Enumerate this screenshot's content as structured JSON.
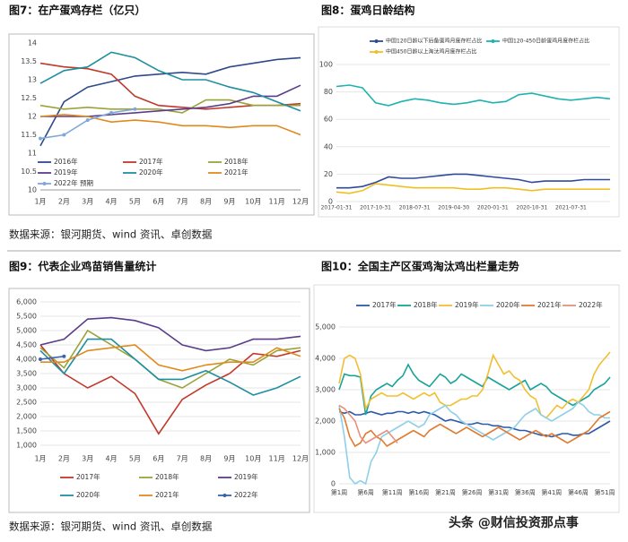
{
  "chart_data": [
    {
      "type": "line",
      "title": "图7：在产蛋鸡存栏（亿只）",
      "categories": [
        "1月",
        "2月",
        "3月",
        "4月",
        "5月",
        "6月",
        "7月",
        "8月",
        "9月",
        "10月",
        "11月",
        "12月"
      ],
      "ylim": [
        10,
        14
      ],
      "yticks": [
        10,
        10.5,
        11,
        11.5,
        12,
        12.5,
        13,
        13.5,
        14
      ],
      "legend": "bottom",
      "series": [
        {
          "name": "2016年",
          "color": "#2e4a8a",
          "values": [
            11.2,
            12.4,
            12.8,
            12.95,
            13.1,
            13.15,
            13.2,
            13.15,
            13.35,
            13.45,
            13.55,
            13.6
          ]
        },
        {
          "name": "2017年",
          "color": "#c0392b",
          "values": [
            13.45,
            13.35,
            13.3,
            13.15,
            12.55,
            12.3,
            12.25,
            12.2,
            12.25,
            12.3,
            12.3,
            12.35
          ]
        },
        {
          "name": "2018年",
          "color": "#9aa33a",
          "values": [
            12.3,
            12.2,
            12.25,
            12.2,
            12.2,
            12.2,
            12.1,
            12.45,
            12.45,
            12.3,
            12.3,
            12.3
          ]
        },
        {
          "name": "2019年",
          "color": "#5b3d8a",
          "values": [
            12.0,
            12.0,
            12.0,
            12.05,
            12.1,
            12.15,
            12.2,
            12.25,
            12.35,
            12.55,
            12.55,
            12.85
          ]
        },
        {
          "name": "2020年",
          "color": "#1f8fa0",
          "values": [
            12.9,
            13.25,
            13.35,
            13.75,
            13.6,
            13.25,
            13.0,
            13.0,
            12.8,
            12.65,
            12.4,
            12.15
          ]
        },
        {
          "name": "2021年",
          "color": "#e08a1e",
          "values": [
            12.0,
            12.05,
            12.0,
            11.85,
            11.9,
            11.85,
            11.75,
            11.75,
            11.7,
            11.75,
            11.75,
            11.5
          ]
        },
        {
          "name": "2022年 预期",
          "color": "#7fa8d8",
          "markers": true,
          "values": [
            11.4,
            11.5,
            11.9,
            12.1,
            12.2,
            null,
            null,
            null,
            null,
            null,
            null,
            null
          ]
        }
      ]
    },
    {
      "type": "line",
      "title": "图8：蛋鸡日龄结构",
      "categories": [
        "2017-01-31",
        null,
        null,
        "2017-10-31",
        null,
        null,
        "2018-07-31",
        null,
        null,
        "2019-04-30",
        null,
        null,
        "2020-01-31",
        null,
        null,
        "2020-10-31",
        null,
        null,
        "2021-07-31",
        null,
        null,
        null
      ],
      "ylim": [
        0,
        100
      ],
      "yticks": [
        0,
        20,
        40,
        60,
        80,
        100
      ],
      "legend": "top",
      "series": [
        {
          "name": "中国120日龄以下后备蛋鸡月度存栏占比",
          "color": "#2e4a9a",
          "markers": true,
          "values": [
            10,
            10,
            11,
            14,
            18,
            17,
            17,
            18,
            19,
            20,
            20,
            19,
            18,
            17,
            16,
            14,
            15,
            15,
            15,
            16,
            16,
            16
          ]
        },
        {
          "name": "中国120-450日龄蛋鸡月度存栏占比",
          "color": "#1fb3b0",
          "markers": true,
          "values": [
            84,
            85,
            83,
            72,
            70,
            73,
            75,
            74,
            72,
            71,
            72,
            74,
            72,
            73,
            78,
            79,
            77,
            75,
            74,
            75,
            76,
            75
          ]
        },
        {
          "name": "中国450日龄以上淘汰鸡月度存栏占比",
          "color": "#f0c020",
          "markers": true,
          "values": [
            7,
            6,
            8,
            13,
            12,
            11,
            10,
            10,
            10,
            10,
            9,
            9,
            10,
            10,
            9,
            8,
            9,
            9,
            9,
            9,
            9,
            9
          ]
        }
      ]
    },
    {
      "type": "line",
      "title": "图9：代表企业鸡苗销售量统计",
      "categories": [
        "1月",
        "2月",
        "3月",
        "4月",
        "5月",
        "6月",
        "7月",
        "8月",
        "9月",
        "10月",
        "11月",
        "12月"
      ],
      "ylim": [
        1000,
        6000
      ],
      "yticks": [
        {
          "value": 1000,
          "label": "1,000"
        },
        {
          "value": 1500,
          "label": "1,500"
        },
        {
          "value": 2000,
          "label": "2,000"
        },
        {
          "value": 2500,
          "label": "2,500"
        },
        {
          "value": 3000,
          "label": "3,000"
        },
        {
          "value": 3500,
          "label": "3,500"
        },
        {
          "value": 4000,
          "label": "4,000"
        },
        {
          "value": 4500,
          "label": "4,500"
        },
        {
          "value": 5000,
          "label": "5,000"
        },
        {
          "value": 5500,
          "label": "5,500"
        },
        {
          "value": 6000,
          "label": "6,000"
        }
      ],
      "legend": "bottom",
      "series": [
        {
          "name": "2017年",
          "color": "#c0392b",
          "values": [
            4500,
            3500,
            3000,
            3400,
            2800,
            1400,
            2600,
            3100,
            3500,
            4200,
            4100,
            4300
          ]
        },
        {
          "name": "2018年",
          "color": "#9aa33a",
          "values": [
            4400,
            3700,
            5000,
            4500,
            4000,
            3300,
            3000,
            3500,
            4000,
            3800,
            4300,
            4400
          ]
        },
        {
          "name": "2019年",
          "color": "#5b3d8a",
          "values": [
            4500,
            4700,
            5400,
            5450,
            5350,
            5100,
            4500,
            4300,
            4400,
            4700,
            4700,
            4800
          ]
        },
        {
          "name": "2020年",
          "color": "#1f8fa0",
          "values": [
            4300,
            3500,
            4700,
            4700,
            4000,
            3300,
            3300,
            3600,
            3200,
            2750,
            3000,
            3400
          ]
        },
        {
          "name": "2021年",
          "color": "#e08a1e",
          "values": [
            3900,
            3900,
            4300,
            4400,
            4500,
            3800,
            3600,
            3800,
            3900,
            3900,
            4400,
            4100
          ]
        },
        {
          "name": "2022年",
          "color": "#3a62b0",
          "markers": true,
          "values": [
            4000,
            4100,
            null,
            null,
            null,
            null,
            null,
            null,
            null,
            null,
            null,
            null
          ]
        }
      ]
    },
    {
      "type": "line",
      "title": "图10：全国主产区蛋鸡淘汰鸡出栏量走势",
      "categories": [
        "第1周",
        null,
        null,
        null,
        null,
        "第6周",
        null,
        null,
        null,
        null,
        "第11周",
        null,
        null,
        null,
        null,
        "第16周",
        null,
        null,
        null,
        null,
        "第21周",
        null,
        null,
        null,
        null,
        "第26周",
        null,
        null,
        null,
        null,
        "第31周",
        null,
        null,
        null,
        null,
        "第36周",
        null,
        null,
        null,
        null,
        "第41周",
        null,
        null,
        null,
        null,
        "第46周",
        null,
        null,
        null,
        null,
        "第51周",
        null
      ],
      "ylim": [
        0,
        5000
      ],
      "yticks": [
        0,
        {
          "value": 1000,
          "label": "1,000"
        },
        {
          "value": 2000,
          "label": "2,000"
        },
        {
          "value": 3000,
          "label": "3,000"
        },
        {
          "value": 4000,
          "label": "4,000"
        },
        {
          "value": 5000,
          "label": "5,000"
        }
      ],
      "legend": "top",
      "series": [
        {
          "name": "2017年",
          "color": "#2e5aa8",
          "values": [
            2300,
            2250,
            2300,
            2200,
            2200,
            2250,
            2300,
            2250,
            2200,
            2250,
            2250,
            2300,
            2300,
            2250,
            2300,
            2250,
            2300,
            2250,
            2200,
            2100,
            2000,
            2050,
            2000,
            1950,
            1900,
            1900,
            1950,
            1900,
            1900,
            1850,
            1850,
            1800,
            1800,
            1750,
            1700,
            1700,
            1650,
            1600,
            1550,
            1550,
            1500,
            1550,
            1600,
            1600,
            1550,
            1550,
            1600,
            1600,
            1700,
            1800,
            1900,
            2000
          ]
        },
        {
          "name": "2018年",
          "color": "#1aa39a",
          "values": [
            3000,
            3500,
            3450,
            3450,
            3400,
            2200,
            2800,
            3000,
            3100,
            3200,
            3100,
            3300,
            3450,
            3800,
            3500,
            3300,
            3200,
            3100,
            3300,
            3500,
            3400,
            3200,
            3300,
            3500,
            3400,
            3300,
            3200,
            3100,
            3400,
            3300,
            3200,
            3100,
            3000,
            3100,
            3200,
            3300,
            3000,
            3100,
            3200,
            3100,
            2900,
            2800,
            2700,
            2600,
            2500,
            2600,
            2700,
            2800,
            3000,
            3100,
            3200,
            3400
          ]
        },
        {
          "name": "2019年",
          "color": "#f0c030",
          "values": [
            3200,
            4000,
            4100,
            4000,
            3500,
            2400,
            2700,
            2800,
            2900,
            2800,
            2800,
            2800,
            2900,
            2800,
            2700,
            2800,
            2900,
            2800,
            2900,
            2600,
            2500,
            2500,
            2600,
            2700,
            2700,
            2800,
            2800,
            3000,
            3500,
            4100,
            3800,
            3500,
            3600,
            3400,
            3300,
            3000,
            2800,
            2700,
            2200,
            2100,
            2300,
            2500,
            2400,
            2600,
            2700,
            2600,
            2800,
            3000,
            3500,
            3800,
            4000,
            4200
          ]
        },
        {
          "name": "2020年",
          "color": "#8fd0e8",
          "values": [
            2500,
            1500,
            200,
            0,
            100,
            0,
            700,
            1000,
            1500,
            1600,
            1700,
            1800,
            1900,
            2000,
            1900,
            1800,
            1900,
            2200,
            2300,
            2400,
            2500,
            2300,
            2200,
            2000,
            1900,
            1800,
            1700,
            1600,
            1500,
            1400,
            1500,
            1600,
            1700,
            1800,
            2000,
            2200,
            2300,
            2400,
            2200,
            2100,
            2000,
            2100,
            2200,
            2300,
            2400,
            2600,
            2500,
            2300,
            2200,
            2200,
            2100,
            2100
          ]
        },
        {
          "name": "2021年",
          "color": "#e07b30",
          "values": [
            2400,
            2100,
            1500,
            1200,
            1300,
            1600,
            1700,
            1500,
            1400,
            1200,
            1300,
            1400,
            1500,
            1600,
            1700,
            1600,
            1500,
            1700,
            1800,
            1900,
            1800,
            1700,
            1600,
            1700,
            1800,
            1700,
            1600,
            1500,
            1600,
            1700,
            1800,
            1700,
            1600,
            1500,
            1400,
            1500,
            1600,
            1700,
            1600,
            1500,
            1600,
            1500,
            1400,
            1300,
            1400,
            1500,
            1600,
            1700,
            1900,
            2100,
            2200,
            2300
          ]
        },
        {
          "name": "2022年",
          "color": "#e8907a",
          "values": [
            2500,
            2400,
            2200,
            2000,
            1500,
            1300,
            1400,
            1500,
            1600,
            1700,
            1500,
            1300,
            null,
            null,
            null,
            null,
            null,
            null,
            null,
            null,
            null,
            null,
            null,
            null,
            null,
            null,
            null,
            null,
            null,
            null,
            null,
            null,
            null,
            null,
            null,
            null,
            null,
            null,
            null,
            null,
            null,
            null,
            null,
            null,
            null,
            null,
            null,
            null,
            null,
            null,
            null,
            null
          ]
        }
      ]
    }
  ],
  "sources": [
    "数据来源：银河期货、wind 资讯、卓创数据",
    "数据来源：银河期货、wind 资讯、卓创数据"
  ],
  "watermark": "头条 @财信投资那点事"
}
